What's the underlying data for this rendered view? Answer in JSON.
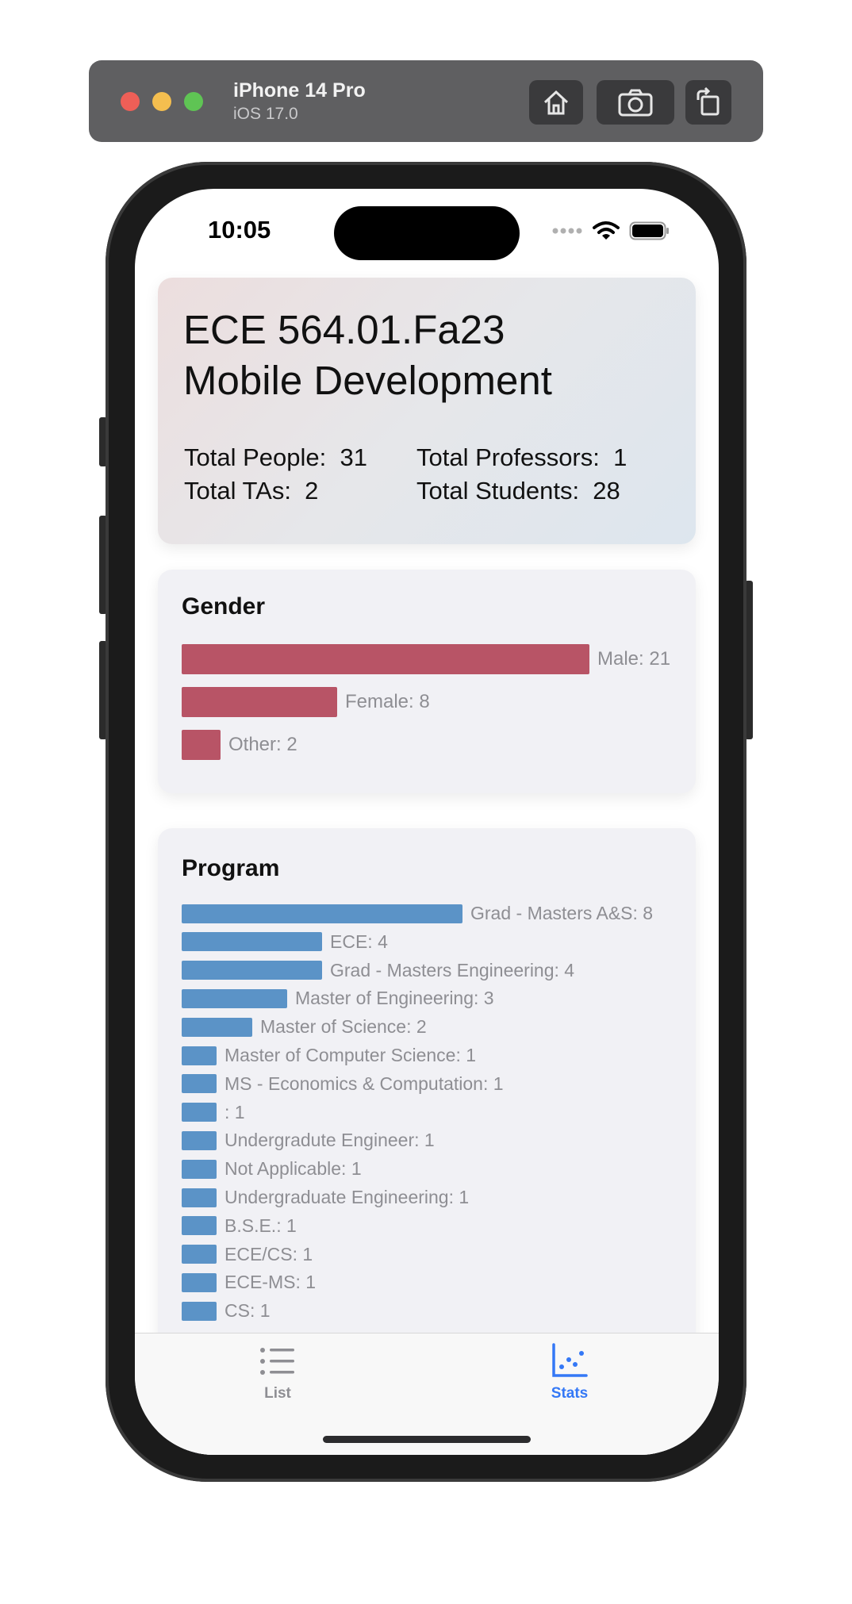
{
  "simulator": {
    "device_name": "iPhone 14 Pro",
    "os_version": "iOS 17.0"
  },
  "status_bar": {
    "time": "10:05"
  },
  "header": {
    "title_line1": "ECE 564.01.Fa23",
    "title_line2": "Mobile Development",
    "total_people": "Total People:  31",
    "total_professors": "Total Professors:  1",
    "total_tas": "Total TAs:  2",
    "total_students": "Total Students:  28"
  },
  "gender": {
    "title": "Gender",
    "bars": [
      {
        "label": "Male: 21",
        "value": 21
      },
      {
        "label": "Female: 8",
        "value": 8
      },
      {
        "label": "Other: 2",
        "value": 2
      }
    ]
  },
  "program": {
    "title": "Program",
    "bars": [
      {
        "label": "Grad - Masters A&S: 8",
        "value": 8
      },
      {
        "label": "ECE: 4",
        "value": 4
      },
      {
        "label": "Grad - Masters Engineering: 4",
        "value": 4
      },
      {
        "label": "Master of Engineering: 3",
        "value": 3
      },
      {
        "label": "Master of Science: 2",
        "value": 2
      },
      {
        "label": "Master of Computer Science: 1",
        "value": 1
      },
      {
        "label": "MS - Economics & Computation: 1",
        "value": 1
      },
      {
        "label": ": 1",
        "value": 1
      },
      {
        "label": "Undergradute Engineer: 1",
        "value": 1
      },
      {
        "label": "Not Applicable: 1",
        "value": 1
      },
      {
        "label": "Undergraduate Engineering: 1",
        "value": 1
      },
      {
        "label": "B.S.E.: 1",
        "value": 1
      },
      {
        "label": "ECE/CS: 1",
        "value": 1
      },
      {
        "label": "ECE-MS: 1",
        "value": 1
      },
      {
        "label": "CS: 1",
        "value": 1
      }
    ]
  },
  "tabs": [
    {
      "label": "List",
      "icon": "list-icon",
      "selected": false
    },
    {
      "label": "Stats",
      "icon": "scatter-chart-icon",
      "selected": true
    }
  ],
  "colors": {
    "gender_bar": "#b85466",
    "program_bar": "#5b93c7",
    "tab_selected": "#3478f6",
    "tab_unselected": "#8e8e93"
  }
}
